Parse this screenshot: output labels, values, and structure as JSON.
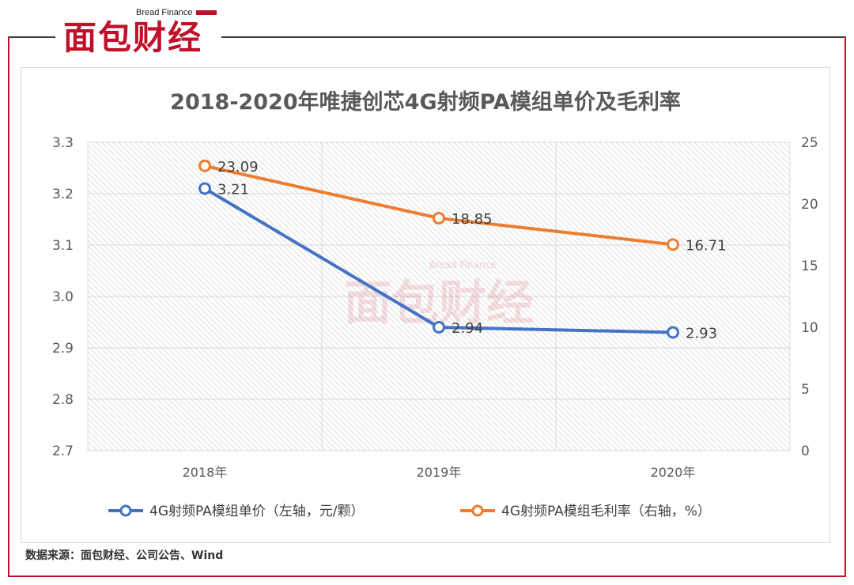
{
  "brand": {
    "logo_text": "面包财经",
    "logo_sub": "Bread Finance"
  },
  "source_note": "数据来源：面包财经、公司公告、Wind",
  "chart_data": {
    "type": "line",
    "title": "2018-2020年唯捷创芯4G射频PA模组单价及毛利率",
    "categories": [
      "2018年",
      "2019年",
      "2020年"
    ],
    "left_axis": {
      "min": 2.7,
      "max": 3.3,
      "ticks": [
        "2.7",
        "2.8",
        "2.9",
        "3.0",
        "3.1",
        "3.2",
        "3.3"
      ]
    },
    "right_axis": {
      "min": 0,
      "max": 25,
      "ticks": [
        "0",
        "5",
        "10",
        "15",
        "20",
        "25"
      ]
    },
    "series": [
      {
        "name": "4G射频PA模组单价（左轴，元/颗）",
        "axis": "left",
        "color": "#4472c4",
        "values": [
          3.21,
          2.94,
          2.93
        ],
        "labels": [
          "3.21",
          "2.94",
          "2.93"
        ]
      },
      {
        "name": "4G射频PA模组毛利率（右轴，%）",
        "axis": "right",
        "color": "#ed7d31",
        "values": [
          23.09,
          18.85,
          16.71
        ],
        "labels": [
          "23.09",
          "18.85",
          "16.71"
        ]
      }
    ],
    "legend_position": "bottom",
    "grid": true,
    "watermark": "面包财经"
  }
}
